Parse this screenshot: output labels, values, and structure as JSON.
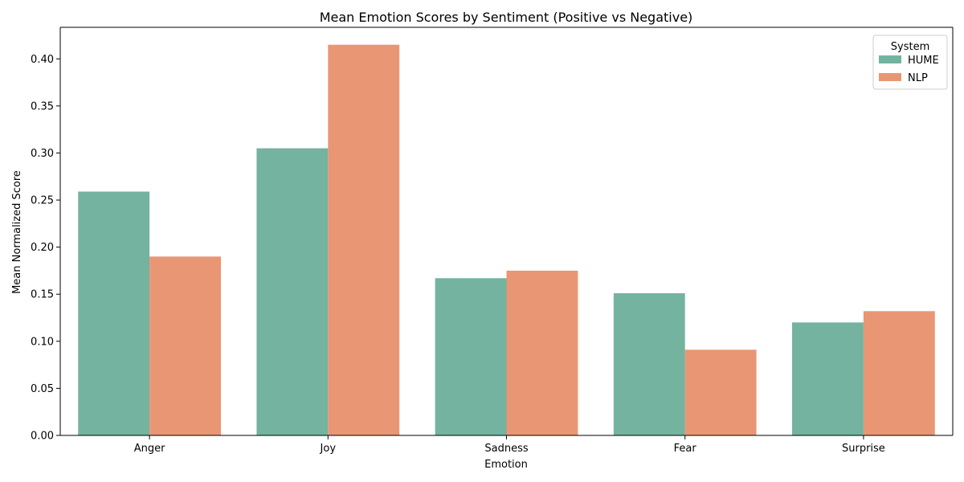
{
  "chart_data": {
    "type": "bar",
    "title": "Mean Emotion Scores by Sentiment (Positive vs Negative)",
    "xlabel": "Emotion",
    "ylabel": "Mean Normalized Score",
    "categories": [
      "Anger",
      "Joy",
      "Sadness",
      "Fear",
      "Surprise"
    ],
    "series": [
      {
        "name": "HUME",
        "color": "#73b3a0",
        "values": [
          0.259,
          0.305,
          0.167,
          0.151,
          0.12
        ]
      },
      {
        "name": "NLP",
        "color": "#e99675",
        "values": [
          0.19,
          0.415,
          0.175,
          0.091,
          0.132
        ]
      }
    ],
    "ylim": [
      0,
      0.4335
    ],
    "yticks": [
      "0.00",
      "0.05",
      "0.10",
      "0.15",
      "0.20",
      "0.25",
      "0.30",
      "0.35",
      "0.40"
    ],
    "legend": {
      "title": "System",
      "placement": "top-right"
    },
    "grid": false
  }
}
